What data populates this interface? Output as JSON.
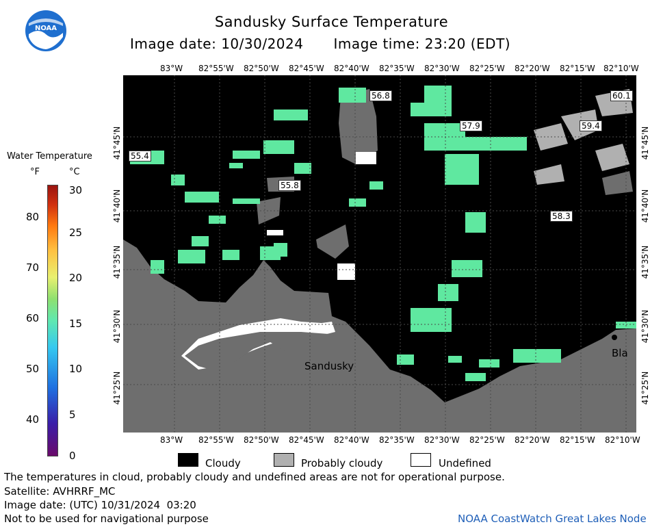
{
  "header": {
    "logo_text": "NOAA",
    "title": "Sandusky Surface Temperature",
    "image_date": "Image date: 10/30/2024",
    "image_time": "Image time: 23:20 (EDT)"
  },
  "colorbar": {
    "title": "Water Temperature",
    "unit_f": "°F",
    "unit_c": "°C",
    "f_ticks": [
      "80",
      "70",
      "60",
      "50",
      "40"
    ],
    "c_ticks": [
      "30",
      "25",
      "20",
      "15",
      "10",
      "5",
      "0"
    ],
    "colors": [
      "#6a0a6a",
      "#3a1ea8",
      "#1f6fe0",
      "#35c8f0",
      "#5fe8b0",
      "#8ee070",
      "#e8f070",
      "#ffc040",
      "#ff7a10",
      "#d03010",
      "#9a1410"
    ]
  },
  "map": {
    "lon_labels": [
      "83°W",
      "82°55'W",
      "82°50'W",
      "82°45'W",
      "82°40'W",
      "82°35'W",
      "82°30'W",
      "82°25'W",
      "82°20'W",
      "82°15'W"
    ],
    "lon_top_last": "82°10'W",
    "lon_bottom_last": "82°10'W",
    "lat_labels": [
      "41°45'N",
      "41°40'N",
      "41°35'N",
      "41°30'N",
      "41°25'N"
    ],
    "temp_labels": [
      "56.8",
      "60.1",
      "57.9",
      "59.4",
      "55.4",
      "55.8",
      "58.3"
    ],
    "place_sandusky": "Sandusky",
    "place_bla": "Bla"
  },
  "legend": {
    "cloudy": "Cloudy",
    "probably_cloudy": "Probably cloudy",
    "undefined": "Undefined",
    "cloudy_color": "#000000",
    "probably_cloudy_color": "#b0b0b0",
    "undefined_color": "#ffffff"
  },
  "footer": {
    "note": "The temperatures in cloud, probably cloudy and undefined areas are not for operational purpose.",
    "satellite": "Satellite: AVHRRF_MC",
    "utc_date": "Image date: (UTC) 10/31/2024  03:20",
    "nav_warning": "Not to be used for navigational purpose",
    "credit": "NOAA CoastWatch Great Lakes Node"
  }
}
